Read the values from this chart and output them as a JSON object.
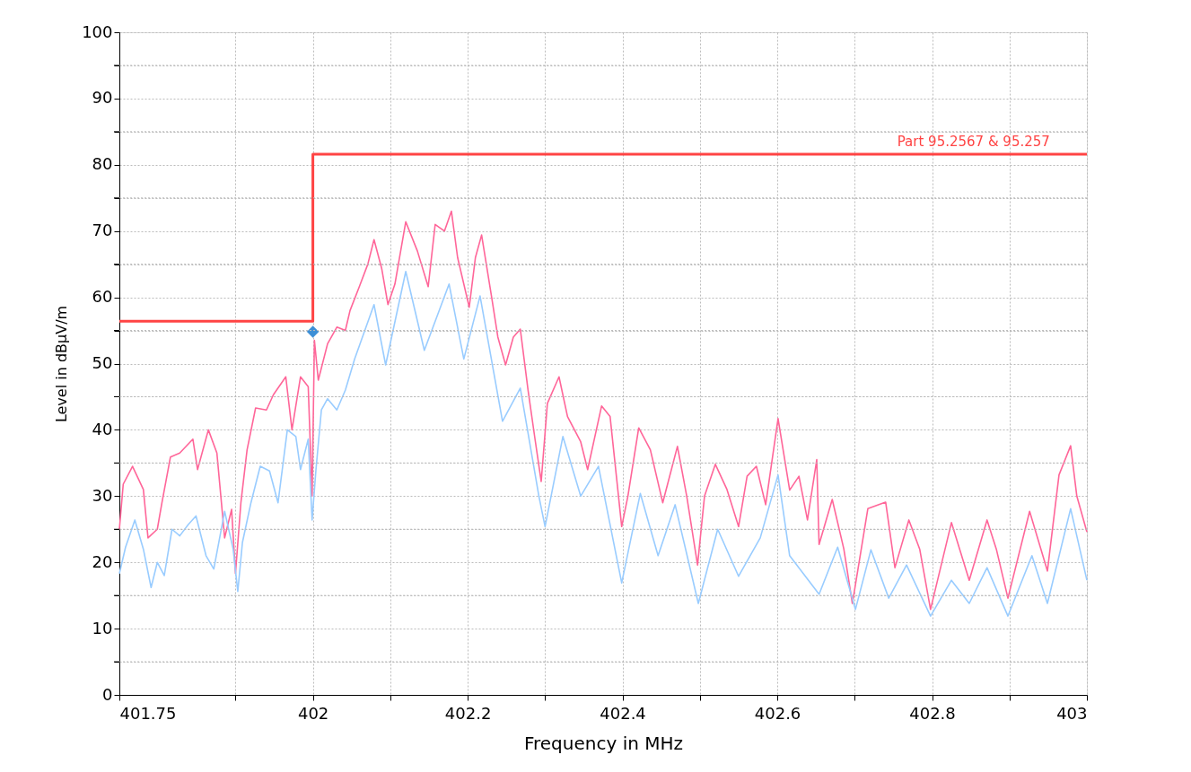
{
  "chart_data": {
    "type": "line",
    "xlabel": "Frequency in MHz",
    "ylabel": "Level in dBµV/m",
    "xlim": [
      401.75,
      403
    ],
    "ylim": [
      0,
      100
    ],
    "xticks": [
      401.75,
      {
        "value": 401.9,
        "label": null
      },
      402,
      {
        "value": 402.1,
        "label": null
      },
      402.2,
      {
        "value": 402.3,
        "label": null
      },
      402.4,
      {
        "value": 402.5,
        "label": null
      },
      402.6,
      {
        "value": 402.7,
        "label": null
      },
      402.8,
      {
        "value": 402.9,
        "label": null
      },
      403
    ],
    "yticks": [
      0,
      {
        "value": 5,
        "label": null
      },
      10,
      {
        "value": 15,
        "label": null
      },
      20,
      {
        "value": 25,
        "label": null
      },
      30,
      {
        "value": 35,
        "label": null
      },
      40,
      {
        "value": 45,
        "label": null
      },
      50,
      {
        "value": 55,
        "label": null
      },
      60,
      {
        "value": 65,
        "label": null
      },
      70,
      {
        "value": 75,
        "label": null
      },
      80,
      {
        "value": 85,
        "label": null
      },
      90,
      {
        "value": 95,
        "label": null
      },
      100
    ],
    "grid": true,
    "legend": false,
    "marker": "none",
    "line_style": "solid",
    "series": [
      {
        "color": "#ff6699",
        "x": [
          401.75,
          401.755,
          401.767,
          401.781,
          401.787,
          401.799,
          401.805,
          401.816,
          401.828,
          401.845,
          401.851,
          401.865,
          401.876,
          401.886,
          401.895,
          401.9,
          401.907,
          401.915,
          401.926,
          401.94,
          401.949,
          401.965,
          401.973,
          401.984,
          401.994,
          401.999,
          402.002,
          402.007,
          402.019,
          402.031,
          402.042,
          402.048,
          402.06,
          402.071,
          402.079,
          402.089,
          402.097,
          402.106,
          402.12,
          402.135,
          402.149,
          402.158,
          402.17,
          402.179,
          402.187,
          402.202,
          402.21,
          402.218,
          402.231,
          402.239,
          402.249,
          402.259,
          402.268,
          402.278,
          402.287,
          402.295,
          402.303,
          402.318,
          402.329,
          402.346,
          402.355,
          402.373,
          402.384,
          402.399,
          402.407,
          402.421,
          402.436,
          402.452,
          402.471,
          402.483,
          402.497,
          402.506,
          402.52,
          402.535,
          402.55,
          402.561,
          402.573,
          402.585,
          402.601,
          402.616,
          402.628,
          402.639,
          402.651,
          402.654,
          402.671,
          402.686,
          402.697,
          402.717,
          402.74,
          402.752,
          402.77,
          402.784,
          402.798,
          402.825,
          402.848,
          402.871,
          402.883,
          402.898,
          402.926,
          402.949,
          402.964,
          402.979,
          402.987,
          403
        ],
        "values": [
          25,
          31.8,
          34.5,
          31,
          23.7,
          25,
          29,
          35.9,
          36.5,
          38.6,
          34,
          40,
          36.5,
          23.7,
          28,
          18.3,
          29,
          37,
          43.3,
          43,
          45.3,
          48,
          40,
          48,
          46.5,
          30,
          53.5,
          47.5,
          53,
          55.5,
          55,
          58,
          61.6,
          65,
          68.7,
          64.3,
          58.9,
          62,
          71.4,
          67,
          61.6,
          71,
          70,
          73,
          66,
          58.5,
          66,
          69.4,
          60,
          54,
          49.8,
          54,
          55.2,
          46,
          38.6,
          32.2,
          44,
          48,
          42,
          38.2,
          34,
          43.6,
          42,
          25.4,
          30,
          40.3,
          37,
          29,
          37.5,
          30,
          19.6,
          30,
          34.8,
          31,
          25.4,
          33,
          34.5,
          28.7,
          41.7,
          30.9,
          33,
          26.4,
          35.5,
          22.7,
          29.5,
          22,
          13.8,
          28.1,
          29.1,
          19.2,
          26.4,
          22,
          12.9,
          26,
          17.3,
          26.4,
          22,
          14.6,
          27.7,
          18.7,
          33.2,
          37.6,
          30,
          24.6
        ]
      },
      {
        "color": "#99ccff",
        "x": [
          401.75,
          401.758,
          401.77,
          401.781,
          401.791,
          401.799,
          401.808,
          401.818,
          401.828,
          401.839,
          401.849,
          401.862,
          401.872,
          401.886,
          401.897,
          401.903,
          401.909,
          401.92,
          401.932,
          401.944,
          401.955,
          401.967,
          401.978,
          401.984,
          401.994,
          401.999,
          402.004,
          402.011,
          402.019,
          402.031,
          402.042,
          402.054,
          402.079,
          402.094,
          402.12,
          402.144,
          402.176,
          402.195,
          402.216,
          402.245,
          402.268,
          402.292,
          402.3,
          402.323,
          402.346,
          402.369,
          402.392,
          402.399,
          402.423,
          402.446,
          402.468,
          402.498,
          402.523,
          402.55,
          402.578,
          402.601,
          402.616,
          402.654,
          402.678,
          402.701,
          402.721,
          402.744,
          402.767,
          402.798,
          402.825,
          402.848,
          402.871,
          402.898,
          402.929,
          402.949,
          402.979,
          403
        ],
        "values": [
          18.3,
          22.3,
          26.4,
          22,
          16.2,
          20,
          18,
          25,
          24,
          25.7,
          27,
          21,
          19,
          27.7,
          22,
          15.6,
          23,
          29,
          34.5,
          33.8,
          29,
          40,
          39,
          34,
          38.6,
          26.4,
          34,
          43,
          44.7,
          43,
          46,
          50.7,
          58.9,
          49.8,
          63.9,
          52,
          62,
          50.7,
          60.2,
          41.3,
          46.3,
          30,
          25.4,
          39,
          30,
          34.5,
          21,
          16.9,
          30.4,
          21,
          28.7,
          13.8,
          25,
          17.9,
          23.7,
          33.2,
          21,
          15.2,
          22.3,
          12.9,
          21.9,
          14.6,
          19.6,
          11.9,
          17.3,
          13.8,
          19.2,
          11.9,
          21,
          13.8,
          28.1,
          17.3
        ]
      },
      {
        "type": "step",
        "color": "#ff4444",
        "x": [
          401.75,
          402,
          403
        ],
        "values": [
          56.4,
          81.6,
          81.6
        ]
      },
      {
        "type": "scatter",
        "marker": "diamond",
        "color": "#3d8fd6",
        "x": [
          402
        ],
        "values": [
          54.8
        ]
      }
    ],
    "annotations": [
      {
        "text": "Part 95.2567 & 95.257",
        "x": 402.755,
        "y": 81.6
      }
    ]
  }
}
